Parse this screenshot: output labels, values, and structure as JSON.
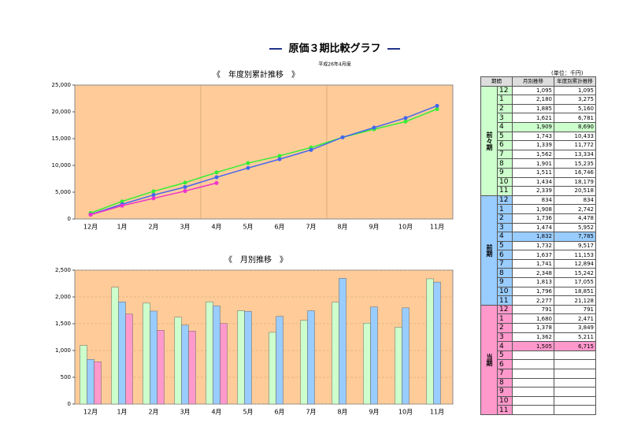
{
  "header": {
    "title": "原価３期比較グラフ",
    "subtitle": "平成26年4月度"
  },
  "chart_data": [
    {
      "type": "line",
      "title": "《　年度別累計推移　》",
      "categories": [
        "12月",
        "1月",
        "2月",
        "3月",
        "4月",
        "5月",
        "6月",
        "7月",
        "8月",
        "9月",
        "10月",
        "11月"
      ],
      "ylim": [
        0,
        25000
      ],
      "yticks": [
        0,
        {
          "value": 5000,
          "label": "5,000"
        },
        {
          "value": 10000,
          "label": "10,000"
        },
        {
          "value": 15000,
          "label": "15,000"
        },
        {
          "value": 20000,
          "label": "20,000"
        },
        {
          "value": 25000,
          "label": "25,000"
        }
      ],
      "grid": false,
      "series": [
        {
          "name": "前々期",
          "color": "#33ee33",
          "values": [
            1095,
            3275,
            5160,
            6781,
            8690,
            10433,
            11772,
            13334,
            15235,
            16746,
            18179,
            20518
          ]
        },
        {
          "name": "前期",
          "color": "#4466ee",
          "values": [
            834,
            2742,
            4478,
            5952,
            7785,
            9517,
            11153,
            12894,
            15242,
            17055,
            18851,
            21128
          ]
        },
        {
          "name": "当期",
          "color": "#ee33cc",
          "values": [
            791,
            2471,
            3849,
            5211,
            6715,
            null,
            null,
            null,
            null,
            null,
            null,
            null
          ]
        }
      ]
    },
    {
      "type": "bar",
      "title": "《　月別推移　》",
      "categories": [
        "12月",
        "1月",
        "2月",
        "3月",
        "4月",
        "5月",
        "6月",
        "7月",
        "8月",
        "9月",
        "10月",
        "11月"
      ],
      "ylim": [
        0,
        2500
      ],
      "yticks": [
        0,
        500,
        {
          "value": 1000,
          "label": "1,000"
        },
        {
          "value": 1500,
          "label": "1,500"
        },
        {
          "value": 2000,
          "label": "2,000"
        },
        {
          "value": 2500,
          "label": "2,500"
        }
      ],
      "grid": true,
      "series": [
        {
          "name": "前々期",
          "color": "#ccffcc",
          "values": [
            1095,
            2180,
            1885,
            1621,
            1909,
            1743,
            1339,
            1562,
            1901,
            1511,
            1434,
            2339
          ]
        },
        {
          "name": "前期",
          "color": "#99ccff",
          "values": [
            834,
            1908,
            1736,
            1474,
            1832,
            1732,
            1637,
            1741,
            2348,
            1813,
            1796,
            2277
          ]
        },
        {
          "name": "当期",
          "color": "#ff99cc",
          "values": [
            791,
            1680,
            1378,
            1362,
            1505,
            null,
            null,
            null,
            null,
            null,
            null,
            null
          ]
        }
      ]
    }
  ],
  "table": {
    "unit": "(単位：千円)",
    "columns": [
      "期間",
      "月別推移",
      "年度別累計推移"
    ],
    "groups": [
      {
        "name": "前々期",
        "color": "#ccffcc",
        "highlight": "4",
        "rows": [
          [
            "12",
            "1,095",
            "1,095"
          ],
          [
            "1",
            "2,180",
            "3,275"
          ],
          [
            "2",
            "1,885",
            "5,160"
          ],
          [
            "3",
            "1,621",
            "6,781"
          ],
          [
            "4",
            "1,909",
            "8,690"
          ],
          [
            "5",
            "1,743",
            "10,433"
          ],
          [
            "6",
            "1,339",
            "11,772"
          ],
          [
            "7",
            "1,562",
            "13,334"
          ],
          [
            "8",
            "1,901",
            "15,235"
          ],
          [
            "9",
            "1,511",
            "16,746"
          ],
          [
            "10",
            "1,434",
            "18,179"
          ],
          [
            "11",
            "2,339",
            "20,518"
          ]
        ]
      },
      {
        "name": "前期",
        "color": "#99ccff",
        "highlight": "4",
        "rows": [
          [
            "12",
            "834",
            "834"
          ],
          [
            "1",
            "1,908",
            "2,742"
          ],
          [
            "2",
            "1,736",
            "4,478"
          ],
          [
            "3",
            "1,474",
            "5,952"
          ],
          [
            "4",
            "1,832",
            "7,785"
          ],
          [
            "5",
            "1,732",
            "9,517"
          ],
          [
            "6",
            "1,637",
            "11,153"
          ],
          [
            "7",
            "1,741",
            "12,894"
          ],
          [
            "8",
            "2,348",
            "15,242"
          ],
          [
            "9",
            "1,813",
            "17,055"
          ],
          [
            "10",
            "1,796",
            "18,851"
          ],
          [
            "11",
            "2,277",
            "21,128"
          ]
        ]
      },
      {
        "name": "当期",
        "color": "#ff99cc",
        "highlight": "4",
        "rows": [
          [
            "12",
            "791",
            "791"
          ],
          [
            "1",
            "1,680",
            "2,471"
          ],
          [
            "2",
            "1,378",
            "3,849"
          ],
          [
            "3",
            "1,362",
            "5,211"
          ],
          [
            "4",
            "1,505",
            "6,715"
          ],
          [
            "5",
            null,
            null
          ],
          [
            "6",
            null,
            null
          ],
          [
            "7",
            null,
            null
          ],
          [
            "8",
            null,
            null
          ],
          [
            "9",
            null,
            null
          ],
          [
            "10",
            null,
            null
          ],
          [
            "11",
            null,
            null
          ]
        ]
      }
    ]
  }
}
